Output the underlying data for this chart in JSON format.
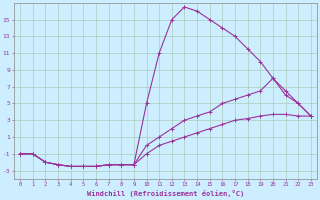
{
  "xlabel": "Windchill (Refroidissement éolien,°C)",
  "background_color": "#cceeff",
  "grid_color": "#aaccbb",
  "line_color": "#993399",
  "xlim": [
    -0.5,
    23.5
  ],
  "ylim": [
    -4,
    17
  ],
  "xticks": [
    0,
    1,
    2,
    3,
    4,
    5,
    6,
    7,
    8,
    9,
    10,
    11,
    12,
    13,
    14,
    15,
    16,
    17,
    18,
    19,
    20,
    21,
    22,
    23
  ],
  "yticks": [
    -3,
    -1,
    1,
    3,
    5,
    7,
    9,
    11,
    13,
    15
  ],
  "line1_x": [
    0,
    1,
    2,
    3,
    4,
    5,
    6,
    7,
    8,
    9,
    10,
    11,
    12,
    13,
    14,
    15,
    16,
    17,
    18,
    19,
    20,
    21,
    22,
    23
  ],
  "line1_y": [
    -1,
    -1,
    -2,
    -2.3,
    -2.5,
    -2.5,
    -2.5,
    -2.3,
    -2.3,
    -2.3,
    5,
    11,
    15,
    16.5,
    16,
    15,
    14,
    13,
    11.5,
    10,
    8,
    6,
    5,
    3.5
  ],
  "line2_x": [
    0,
    1,
    2,
    3,
    4,
    5,
    6,
    7,
    8,
    9,
    10,
    11,
    12,
    13,
    14,
    15,
    16,
    17,
    18,
    19,
    20,
    21,
    22,
    23
  ],
  "line2_y": [
    -1,
    -1,
    -2,
    -2.3,
    -2.5,
    -2.5,
    -2.5,
    -2.3,
    -2.3,
    -2.3,
    0,
    1,
    2,
    3,
    3.5,
    4,
    5,
    5.5,
    6,
    6.5,
    8,
    6.5,
    5,
    3.5
  ],
  "line3_x": [
    0,
    1,
    2,
    3,
    4,
    5,
    6,
    7,
    8,
    9,
    10,
    11,
    12,
    13,
    14,
    15,
    16,
    17,
    18,
    19,
    20,
    21,
    22,
    23
  ],
  "line3_y": [
    -1,
    -1,
    -2,
    -2.3,
    -2.5,
    -2.5,
    -2.5,
    -2.3,
    -2.3,
    -2.3,
    -1,
    0,
    0.5,
    1,
    1.5,
    2,
    2.5,
    3,
    3.2,
    3.5,
    3.7,
    3.7,
    3.5,
    3.5
  ]
}
